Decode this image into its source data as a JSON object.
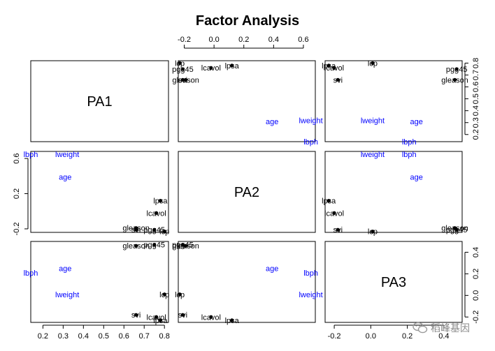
{
  "chart_data": {
    "type": "scatter",
    "title": "Factor Analysis",
    "diagonal_labels": [
      "PA1",
      "PA2",
      "PA3"
    ],
    "ticks": {
      "PA1": [
        "0.2",
        "0.3",
        "0.4",
        "0.5",
        "0.6",
        "0.7",
        "0.8"
      ],
      "PA2": [
        "-0.2",
        "0.2",
        "0.6"
      ],
      "PA3": [
        "-0.2",
        "0.0",
        "0.2",
        "0.4"
      ]
    },
    "tick_values": {
      "PA1": [
        0.2,
        0.3,
        0.4,
        0.5,
        0.6,
        0.7,
        0.8
      ],
      "PA2": [
        -0.2,
        0.2,
        0.6
      ],
      "PA3": [
        -0.2,
        0.0,
        0.2,
        0.4
      ]
    },
    "top_axis_ticks": [
      "-0.2",
      "0.0",
      "0.2",
      "0.4",
      "0.6"
    ],
    "top_axis_values": [
      -0.2,
      0.0,
      0.2,
      0.4,
      0.6
    ],
    "right_axis_ticks": [
      "0.2",
      "0.3",
      "0.4",
      "0.5",
      "0.6",
      "0.7",
      "0.8"
    ],
    "right_axis_values": [
      0.2,
      0.3,
      0.4,
      0.5,
      0.6,
      0.7,
      0.8
    ],
    "variables": [
      {
        "name": "lcavol",
        "PA1": 0.76,
        "PA2": -0.02,
        "PA3": -0.2,
        "marker": true,
        "color": "#000000"
      },
      {
        "name": "lweight",
        "PA1": 0.32,
        "PA2": 0.65,
        "PA3": 0.01,
        "marker": false,
        "color": "#0000ff"
      },
      {
        "name": "age",
        "PA1": 0.31,
        "PA2": 0.39,
        "PA3": 0.25,
        "marker": false,
        "color": "#0000ff"
      },
      {
        "name": "lbph",
        "PA1": 0.14,
        "PA2": 0.65,
        "PA3": 0.21,
        "marker": false,
        "color": "#0000ff"
      },
      {
        "name": "svi",
        "PA1": 0.66,
        "PA2": -0.21,
        "PA3": -0.18,
        "marker": true,
        "color": "#000000"
      },
      {
        "name": "lcp",
        "PA1": 0.8,
        "PA2": -0.23,
        "PA3": 0.01,
        "marker": true,
        "color": "#000000"
      },
      {
        "name": "gleason",
        "PA1": 0.66,
        "PA2": -0.19,
        "PA3": 0.46,
        "marker": true,
        "color": "#000000"
      },
      {
        "name": "pgg45",
        "PA1": 0.75,
        "PA2": -0.21,
        "PA3": 0.47,
        "marker": true,
        "color": "#000000"
      },
      {
        "name": "lpsa",
        "PA1": 0.78,
        "PA2": 0.12,
        "PA3": -0.23,
        "marker": true,
        "color": "#000000"
      }
    ],
    "ranges": {
      "PA1": [
        0.14,
        0.82
      ],
      "PA2": [
        -0.24,
        0.68
      ],
      "PA3": [
        -0.25,
        0.5
      ]
    },
    "grid": false,
    "legend": "none"
  },
  "watermark": {
    "text": "稻峰基因",
    "icon": "wechat-icon"
  }
}
